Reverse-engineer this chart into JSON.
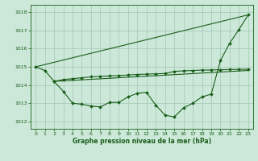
{
  "bg_color": "#cce8d8",
  "grid_color": "#aaccbb",
  "line_color": "#1a5e1a",
  "xlabel": "Graphe pression niveau de la mer (hPa)",
  "xlim": [
    -0.5,
    23.5
  ],
  "ylim": [
    1011.6,
    1018.4
  ],
  "yticks": [
    1012,
    1013,
    1014,
    1015,
    1016,
    1017,
    1018
  ],
  "xticks": [
    0,
    1,
    2,
    3,
    4,
    5,
    6,
    7,
    8,
    9,
    10,
    11,
    12,
    13,
    14,
    15,
    16,
    17,
    18,
    19,
    20,
    21,
    22,
    23
  ],
  "line1_x": [
    0,
    23
  ],
  "line1_y": [
    1015.0,
    1017.85
  ],
  "line2_x": [
    2,
    23
  ],
  "line2_y": [
    1014.2,
    1014.8
  ],
  "line3_x": [
    0,
    1,
    2,
    3,
    4,
    5,
    6,
    7,
    8,
    9,
    10,
    11,
    12,
    13,
    14,
    15,
    16,
    17,
    18,
    19,
    20,
    21,
    22,
    23
  ],
  "line3_y": [
    1015.0,
    1014.8,
    1014.2,
    1013.65,
    1013.0,
    1012.95,
    1012.85,
    1012.8,
    1013.05,
    1013.05,
    1013.35,
    1013.55,
    1013.6,
    1012.9,
    1012.35,
    1012.25,
    1012.75,
    1013.0,
    1013.35,
    1013.5,
    1015.35,
    1016.3,
    1017.05,
    1017.85
  ],
  "line4_x": [
    2,
    3,
    4,
    5,
    6,
    7,
    8,
    9,
    10,
    11,
    12,
    13,
    14,
    15,
    16,
    17,
    18,
    19,
    20,
    21,
    22,
    23
  ],
  "line4_y": [
    1014.2,
    1014.3,
    1014.35,
    1014.4,
    1014.45,
    1014.48,
    1014.5,
    1014.52,
    1014.55,
    1014.58,
    1014.6,
    1014.62,
    1014.63,
    1014.75,
    1014.78,
    1014.8,
    1014.82,
    1014.83,
    1014.84,
    1014.85,
    1014.86,
    1014.87
  ]
}
